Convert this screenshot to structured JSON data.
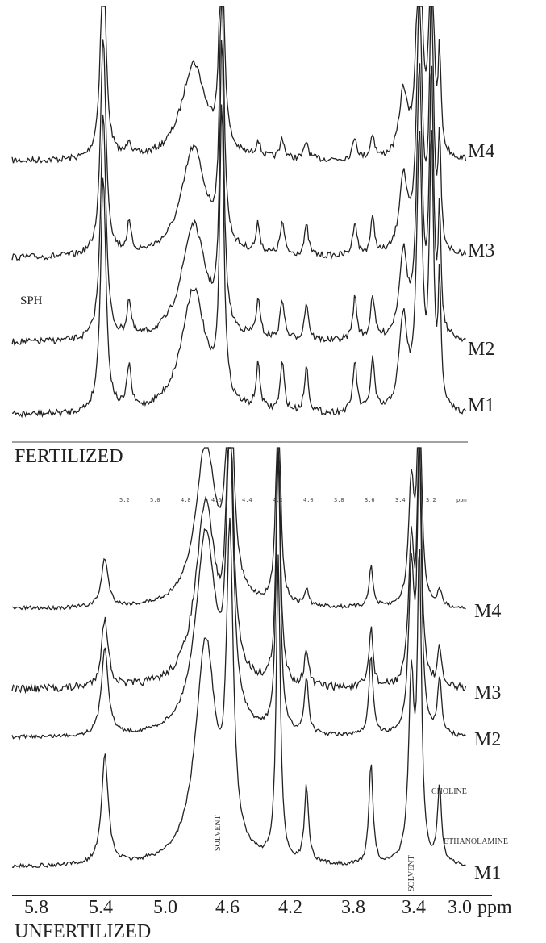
{
  "fertilized": {
    "label": "FERTILIZED",
    "traces": [
      "M4",
      "M3",
      "M2",
      "M1"
    ],
    "annotation": "SPH"
  },
  "unfertilized": {
    "label": "UNFERTILIZED",
    "traces": [
      "M4",
      "M3",
      "M2",
      "M1"
    ],
    "annotations": [
      "SOLVENT",
      "SOLVENT",
      "CHOLINE",
      "ETHANOLAMINE"
    ],
    "inner_ticks": [
      "5.2",
      "5.0",
      "4.8",
      "4.6",
      "4.4",
      "4.2",
      "4.0",
      "3.8",
      "3.6",
      "3.4",
      "3.2",
      "ppm"
    ]
  },
  "axis": {
    "ticks": [
      "5.8",
      "5.4",
      "5.0",
      "4.6",
      "4.2",
      "3.8",
      "3.4",
      "3.0"
    ],
    "unit": "ppm"
  }
}
